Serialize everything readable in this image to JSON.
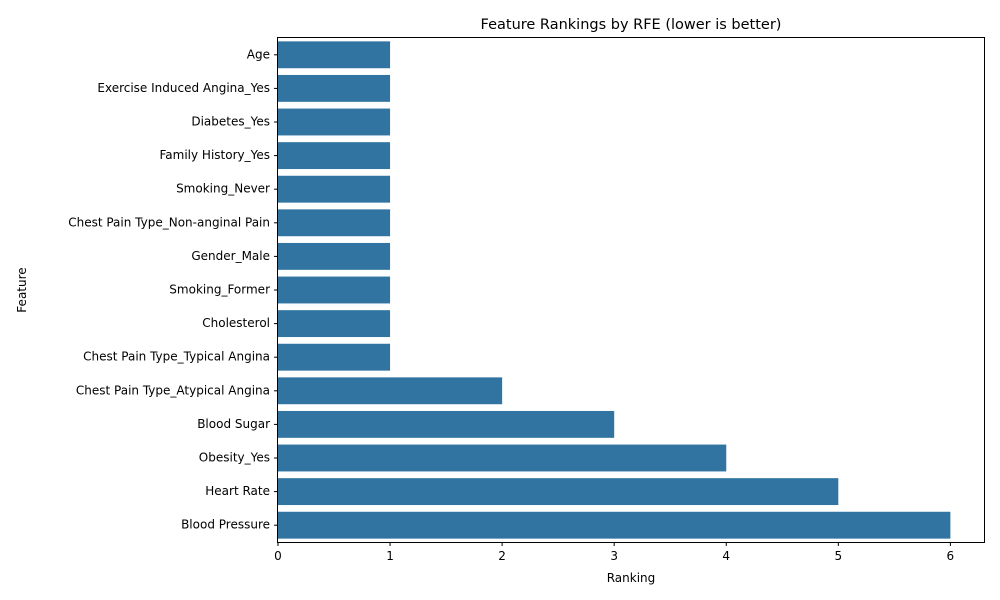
{
  "chart_data": {
    "type": "bar",
    "orientation": "horizontal",
    "title": "Feature Rankings by RFE (lower is better)",
    "xlabel": "Ranking",
    "ylabel": "Feature",
    "categories": [
      "Age",
      "Exercise Induced Angina_Yes",
      "Diabetes_Yes",
      "Family History_Yes",
      "Smoking_Never",
      "Chest Pain Type_Non-anginal Pain",
      "Gender_Male",
      "Smoking_Former",
      "Cholesterol",
      "Chest Pain Type_Typical Angina",
      "Chest Pain Type_Atypical Angina",
      "Blood Sugar",
      "Obesity_Yes",
      "Heart Rate",
      "Blood Pressure"
    ],
    "values": [
      1,
      1,
      1,
      1,
      1,
      1,
      1,
      1,
      1,
      1,
      2,
      3,
      4,
      5,
      6
    ],
    "xlim": [
      0,
      6.3
    ],
    "xticks": [
      0,
      1,
      2,
      3,
      4,
      5,
      6
    ],
    "grid": false,
    "bar_color": "#3274a1"
  }
}
